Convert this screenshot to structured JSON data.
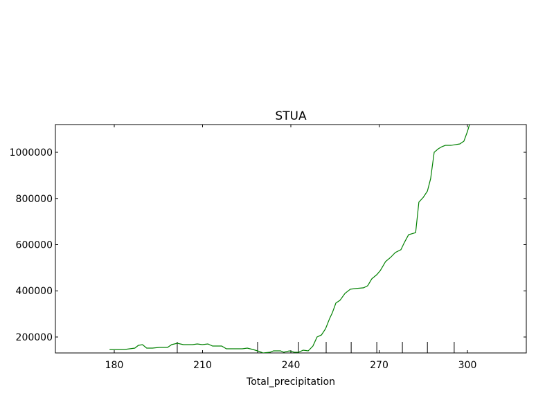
{
  "chart_data": {
    "type": "line",
    "title": "STUA",
    "x_label": "Total_precipitation",
    "xlim": [
      160,
      320
    ],
    "ylim": [
      131000,
      1120000
    ],
    "xticks": [
      180,
      210,
      240,
      270,
      300
    ],
    "yticks": [
      200000,
      400000,
      600000,
      800000,
      1000000
    ],
    "deciles": [
      201.4,
      228.7,
      242.6,
      252,
      260.5,
      269.2,
      277.9,
      286.4,
      295.5
    ],
    "series": [
      {
        "color": "#008000",
        "x": [
          178.4,
          183.5,
          187,
          188.2,
          189.6,
          191,
          193,
          195.3,
          198.1,
          199.5,
          201.4,
          203.5,
          206.6,
          208.2,
          209.9,
          211.8,
          213.4,
          216.5,
          218.1,
          221.2,
          223.5,
          225.2,
          227.1,
          228.7,
          230.6,
          232.9,
          234.1,
          236.5,
          237.6,
          239.5,
          241.2,
          242.6,
          244.2,
          245.9,
          247.5,
          248.9,
          250.4,
          251.8,
          253.2,
          254.1,
          255.3,
          256.7,
          258.4,
          260.2,
          262.1,
          264.7,
          266.1,
          267.5,
          269.2,
          270.4,
          272.2,
          273.9,
          275.5,
          277.4,
          278.6,
          280,
          282.4,
          283.5,
          285,
          286.4,
          287.5,
          288.7,
          290.1,
          291.3,
          292.5,
          294.4,
          295.8,
          297.4,
          298.8,
          300,
          300.7
        ],
        "values": [
          146000,
          146000,
          152000,
          164000,
          167000,
          152000,
          152000,
          155000,
          155000,
          167000,
          173000,
          167000,
          167000,
          170000,
          167000,
          170000,
          161000,
          161000,
          149000,
          149000,
          149000,
          152000,
          146000,
          140000,
          131000,
          134000,
          140000,
          140000,
          134000,
          140000,
          134000,
          134000,
          143000,
          140000,
          161000,
          200000,
          209000,
          236000,
          281000,
          305000,
          347000,
          359000,
          389000,
          407000,
          410000,
          413000,
          422000,
          452000,
          470000,
          488000,
          527000,
          545000,
          566000,
          578000,
          610000,
          643000,
          652000,
          784000,
          805000,
          832000,
          886000,
          1000000,
          1015000,
          1024000,
          1030000,
          1030000,
          1033000,
          1036000,
          1048000,
          1090000,
          1120000
        ]
      }
    ]
  }
}
